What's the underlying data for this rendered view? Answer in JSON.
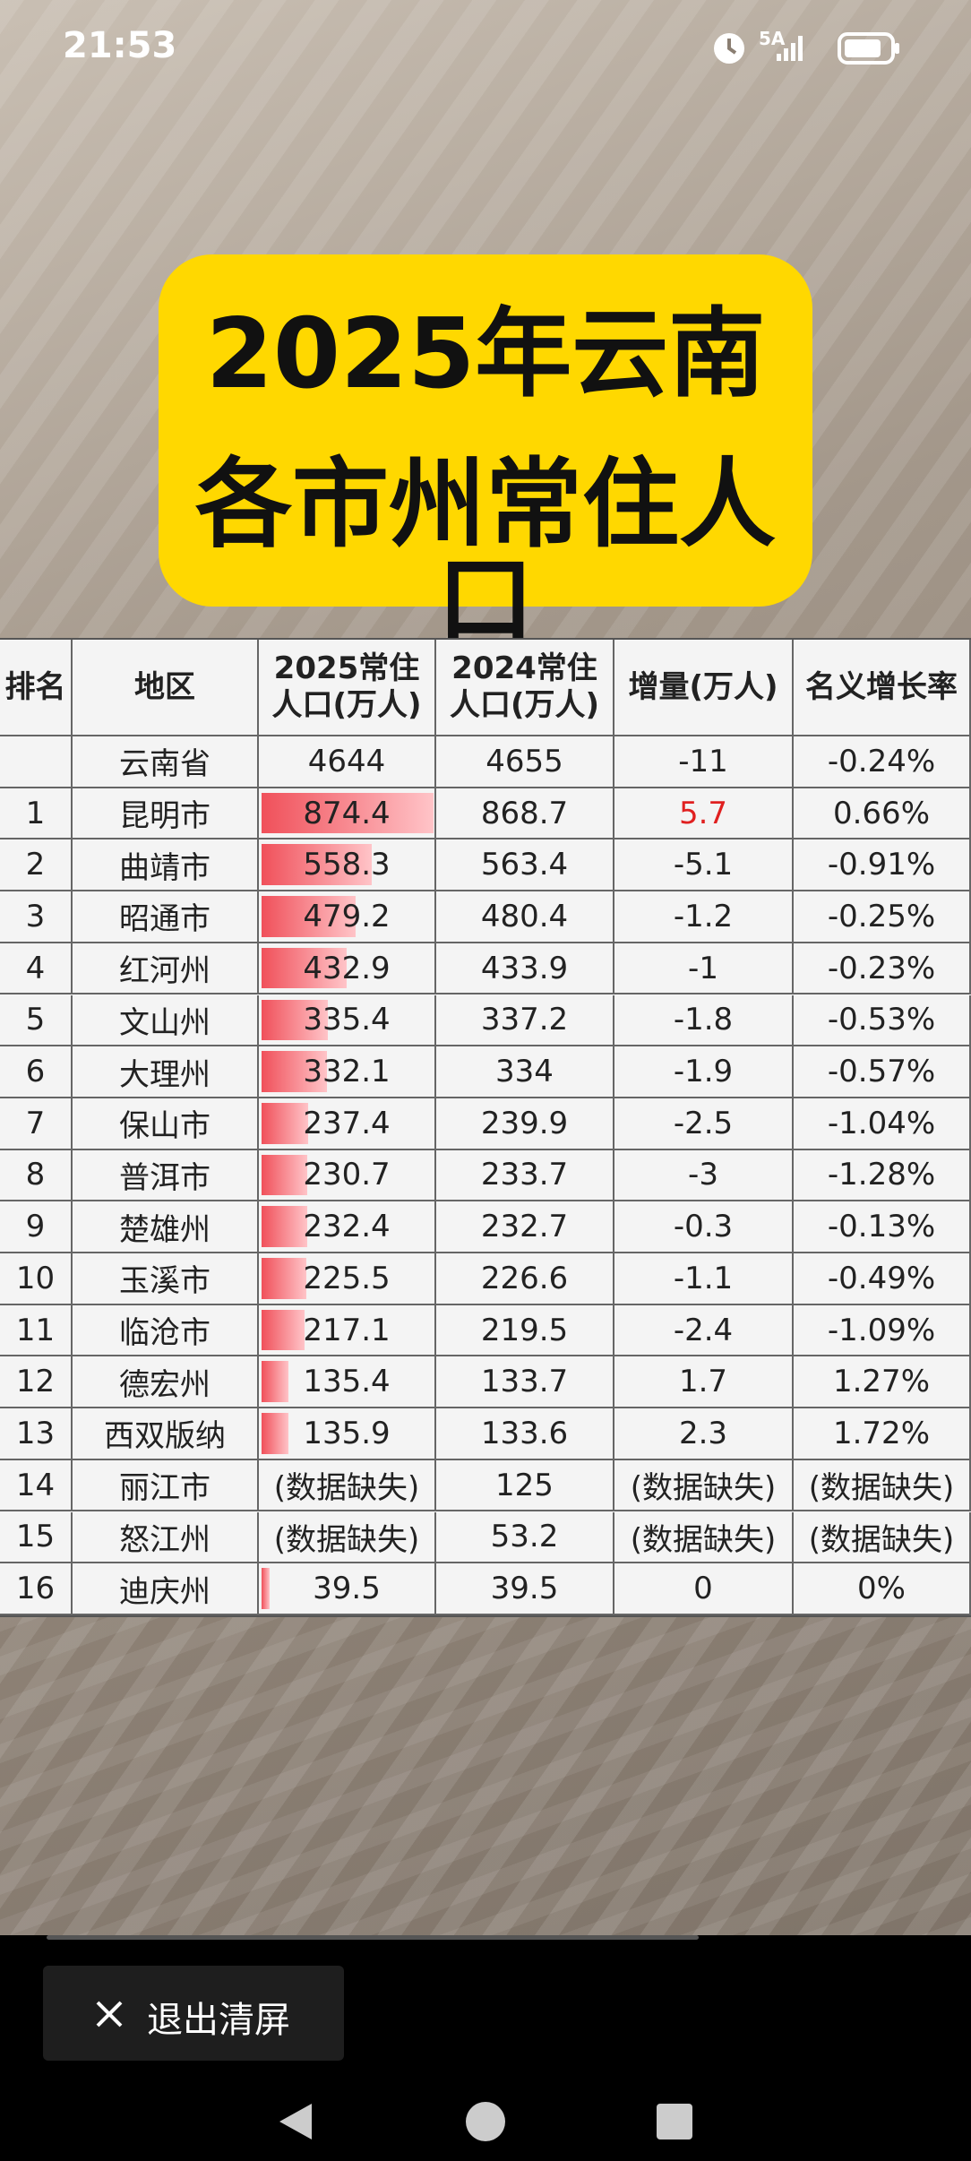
{
  "status_bar": {
    "time": "21:53",
    "network": "5A"
  },
  "title": {
    "lines": [
      "2025年云南",
      "各市州常住人口"
    ]
  },
  "table": {
    "columns": [
      "排名",
      "地区",
      [
        "2025常住",
        "人口(万人)"
      ],
      [
        "2024常住",
        "人口(万人)"
      ],
      "增量(万人)",
      "名义增长率"
    ],
    "rows": [
      [
        null,
        "云南省",
        4644,
        4655,
        -11,
        "-0.24%"
      ],
      [
        1,
        "昆明市",
        874.4,
        868.7,
        5.7,
        "0.66%"
      ],
      [
        2,
        "曲靖市",
        558.3,
        563.4,
        -5.1,
        "-0.91%"
      ],
      [
        3,
        "昭通市",
        479.2,
        480.4,
        -1.2,
        "-0.25%"
      ],
      [
        4,
        "红河州",
        432.9,
        433.9,
        -1,
        "-0.23%"
      ],
      [
        5,
        "文山州",
        335.4,
        337.2,
        -1.8,
        "-0.53%"
      ],
      [
        6,
        "大理州",
        332.1,
        334,
        -1.9,
        "-0.57%"
      ],
      [
        7,
        "保山市",
        237.4,
        239.9,
        -2.5,
        "-1.04%"
      ],
      [
        8,
        "普洱市",
        230.7,
        233.7,
        -3,
        "-1.28%"
      ],
      [
        9,
        "楚雄州",
        232.4,
        232.7,
        -0.3,
        "-0.13%"
      ],
      [
        10,
        "玉溪市",
        225.5,
        226.6,
        -1.1,
        "-0.49%"
      ],
      [
        11,
        "临沧市",
        217.1,
        219.5,
        -2.4,
        "-1.09%"
      ],
      [
        12,
        "德宏州",
        135.4,
        133.7,
        1.7,
        "1.27%"
      ],
      [
        13,
        "西双版纳",
        135.9,
        133.6,
        2.3,
        "1.72%"
      ],
      [
        14,
        "丽江市",
        "(数据缺失)",
        125,
        "(数据缺失)",
        "(数据缺失)"
      ],
      [
        15,
        "怒江州",
        "(数据缺失)",
        53.2,
        "(数据缺失)",
        "(数据缺失)"
      ],
      [
        16,
        "迪庆州",
        39.5,
        39.5,
        0,
        "0%"
      ]
    ]
  },
  "bottom_bar": {
    "button": "退出清屏"
  }
}
